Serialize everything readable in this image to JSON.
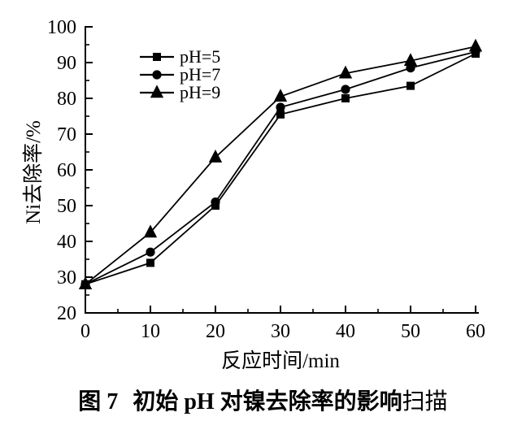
{
  "figure": {
    "caption_label": "图 7",
    "caption_title": "初始 pH 对镍去除率的影响",
    "caption_suffix": "扫描"
  },
  "chart_data": {
    "type": "line",
    "title": "",
    "xlabel": "反应时间/min",
    "ylabel": "Ni去除率/%",
    "x": [
      0,
      10,
      20,
      30,
      40,
      50,
      60
    ],
    "xlim": [
      0,
      60
    ],
    "ylim": [
      20,
      100
    ],
    "xticks": [
      0,
      10,
      20,
      30,
      40,
      50,
      60
    ],
    "yticks": [
      20,
      30,
      40,
      50,
      60,
      70,
      80,
      90,
      100
    ],
    "minor_step": 5,
    "grid": false,
    "legend_position": "upper-left-inside",
    "color": "#000000",
    "series": [
      {
        "name": "pH=5",
        "marker": "square",
        "values": [
          28,
          34,
          50,
          75.5,
          80,
          83.5,
          92.5
        ]
      },
      {
        "name": "pH=7",
        "marker": "circle",
        "values": [
          28,
          37,
          51,
          77.5,
          82.5,
          88.5,
          93
        ]
      },
      {
        "name": "pH=9",
        "marker": "triangle",
        "values": [
          28,
          42.5,
          63.5,
          80.5,
          87,
          90.5,
          94.5
        ]
      }
    ]
  }
}
